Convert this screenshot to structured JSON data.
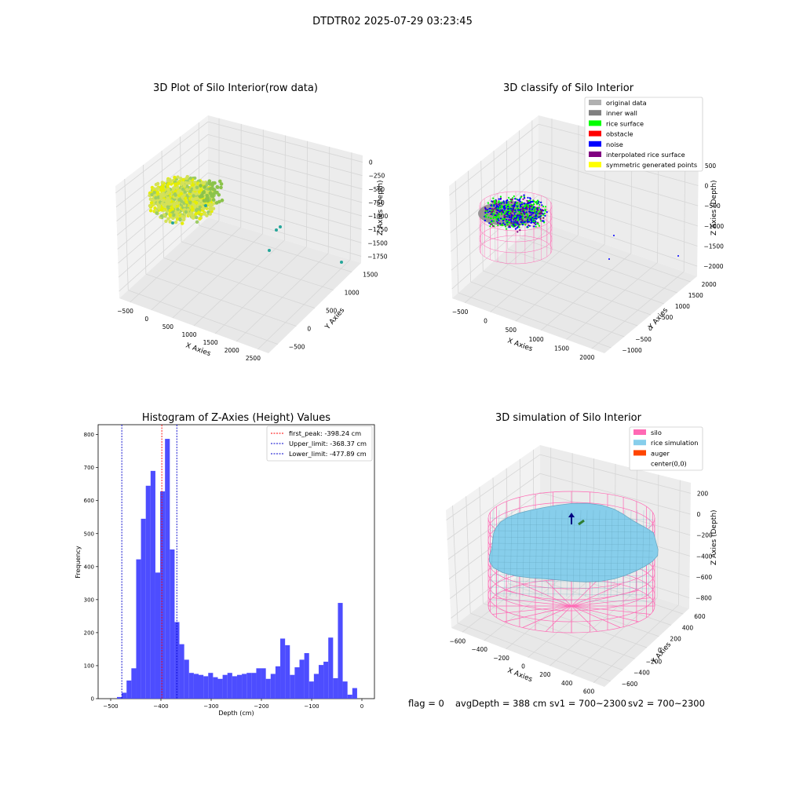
{
  "figure_title": "DTDTR02 2025-07-29 03:23:45",
  "footer": {
    "flag": "flag = 0",
    "avg_depth": "avgDepth = 388 cm",
    "sv1": "sv1 = 700~2300",
    "sv2": "sv2 = 700~2300"
  },
  "colors": {
    "hist_bar": "#4d4dff",
    "first_peak": "#ff0000",
    "limit": "#0000cc",
    "pane": "#f2f2f2",
    "grid": "#d9d9d9",
    "silo": "#ff69b4",
    "rice": "#87ceeb",
    "auger": "#ff4500"
  },
  "chart_data": [
    {
      "type": "scatter3d",
      "title": "3D Plot of Silo Interior(row data)",
      "xlabel": "X Axies",
      "ylabel": "Y Axies",
      "zlabel": "Z Axies (Depth)",
      "x_ticks": [
        "−500",
        "0",
        "500",
        "1000",
        "1500",
        "2000",
        "2500"
      ],
      "y_ticks": [
        "−500",
        "0",
        "500",
        "1000",
        "1500"
      ],
      "z_ticks": [
        "0",
        "−250",
        "−500",
        "−750",
        "−1000",
        "−1250",
        "−1500",
        "−1750"
      ],
      "description_points": "dense cluster of rice surface points near silo top (green-yellow), few scattered outliers at depth"
    },
    {
      "type": "scatter3d",
      "title": "3D classify of Silo Interior",
      "xlabel": "X Axies",
      "ylabel": "Y Axies",
      "zlabel": "Z Axies (Depth)",
      "x_ticks": [
        "−500",
        "0",
        "500",
        "1000",
        "1500",
        "2000"
      ],
      "y_ticks": [
        "−1000",
        "−500",
        "0",
        "500",
        "1000",
        "1500",
        "2000"
      ],
      "z_ticks": [
        "500",
        "0",
        "−500",
        "−1000",
        "−1500",
        "−2000"
      ],
      "legend": [
        {
          "label": "original data",
          "color": "#b0b0b0"
        },
        {
          "label": "inner wall",
          "color": "#808080"
        },
        {
          "label": "rice surface",
          "color": "#00ff00"
        },
        {
          "label": "obstacle",
          "color": "#ff0000"
        },
        {
          "label": "noise",
          "color": "#0000ff"
        },
        {
          "label": "interpolated rice surface",
          "color": "#800080"
        },
        {
          "label": "symmetric generated points",
          "color": "#ffff00"
        }
      ]
    },
    {
      "type": "bar",
      "title": "Histogram of Z-Axies (Height) Values",
      "xlabel": "Depth (cm)",
      "ylabel": "Frequency",
      "xlim": [
        -525,
        25
      ],
      "ylim": [
        0,
        830
      ],
      "x_ticks": [
        -500,
        -400,
        -300,
        -200,
        -100,
        0
      ],
      "y_ticks": [
        0,
        100,
        200,
        300,
        400,
        500,
        600,
        700,
        800
      ],
      "bin_width": 9.56,
      "bin_start": -487.5,
      "values": [
        5,
        18,
        55,
        92,
        422,
        545,
        645,
        690,
        382,
        628,
        787,
        452,
        232,
        165,
        118,
        78,
        75,
        72,
        68,
        78,
        65,
        60,
        72,
        78,
        68,
        72,
        75,
        78,
        78,
        92,
        92,
        60,
        75,
        98,
        182,
        162,
        72,
        95,
        118,
        138,
        52,
        75,
        102,
        112,
        185,
        62,
        290,
        52,
        12,
        32
      ],
      "vlines": [
        {
          "label": "first_peak: -398.24 cm",
          "value": -398.24,
          "color": "#ff0000"
        },
        {
          "label": "Upper_limit: -368.37 cm",
          "value": -368.37,
          "color": "#0000cc"
        },
        {
          "label": "Lower_limit: -477.89 cm",
          "value": -477.89,
          "color": "#0000cc"
        }
      ],
      "legend_position": "top-right"
    },
    {
      "type": "surface3d",
      "title": "3D simulation of Silo Interior",
      "xlabel": "X Axies",
      "ylabel": "Y Axies",
      "zlabel": "Z Axies (Depth)",
      "x_ticks": [
        "−600",
        "−400",
        "−200",
        "0",
        "200",
        "400",
        "600"
      ],
      "y_ticks": [
        "−600",
        "−400",
        "−200",
        "0",
        "200",
        "400",
        "600"
      ],
      "z_ticks": [
        "200",
        "0",
        "−200",
        "−400",
        "−600",
        "−800"
      ],
      "legend": [
        {
          "label": "silo",
          "color": "#ff69b4"
        },
        {
          "label": "rice simulation",
          "color": "#87ceeb"
        },
        {
          "label": "auger",
          "color": "#ff4500"
        },
        {
          "label": "center(0,0)",
          "color": "#ffffff"
        }
      ]
    }
  ]
}
